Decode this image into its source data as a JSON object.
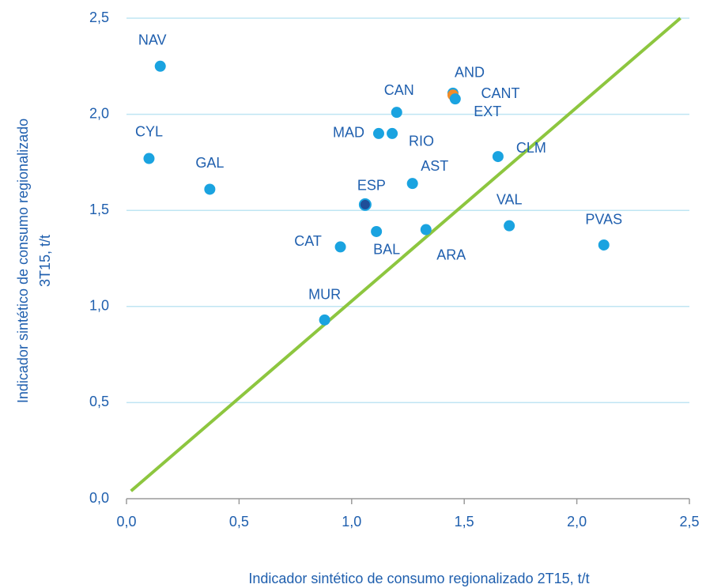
{
  "chart_data": {
    "type": "scatter",
    "x_label": "Indicador  sintético de consumo regionalizado  2T15,  t/t",
    "y_label": [
      "Indicador  sintético de consumo regionalizado",
      "3T15,  t/t"
    ],
    "labels": [
      "NAV",
      "CYL",
      "GAL",
      "MUR",
      "CAT",
      "BAL",
      "ESP",
      "MAD",
      "RIO",
      "CAN",
      "AST",
      "ARA",
      "AND",
      "CANT",
      "EXT",
      "CLM",
      "VAL",
      "PVAS"
    ],
    "x": [
      0.15,
      0.1,
      0.37,
      0.88,
      0.95,
      1.11,
      1.06,
      1.12,
      1.18,
      1.2,
      1.27,
      1.33,
      1.45,
      1.45,
      1.46,
      1.65,
      1.7,
      2.12
    ],
    "y": [
      2.25,
      1.77,
      1.61,
      0.93,
      1.31,
      1.39,
      1.53,
      1.9,
      1.9,
      2.01,
      1.64,
      1.4,
      2.11,
      2.1,
      2.08,
      1.78,
      1.42,
      1.32
    ],
    "colors": [
      "#1aa3e0",
      "#1aa3e0",
      "#1aa3e0",
      "#1aa3e0",
      "#1aa3e0",
      "#1aa3e0",
      "#1f4e99",
      "#1aa3e0",
      "#1aa3e0",
      "#1aa3e0",
      "#1aa3e0",
      "#1aa3e0",
      "#1aa3e0",
      "#f28c28",
      "#1aa3e0",
      "#1aa3e0",
      "#1aa3e0",
      "#1aa3e0"
    ],
    "diagonal": {
      "x": [
        0.02,
        2.46
      ],
      "y": [
        0.04,
        2.5
      ],
      "color": "#8dc63f"
    },
    "xlim": [
      0,
      2.5
    ],
    "ylim": [
      0,
      2.5
    ],
    "xticks": [
      {
        "value": 0,
        "label": "0,0"
      },
      {
        "value": 0.5,
        "label": "0,5"
      },
      {
        "value": 1,
        "label": "1,0"
      },
      {
        "value": 1.5,
        "label": "1,5"
      },
      {
        "value": 2,
        "label": "2,0"
      },
      {
        "value": 2.5,
        "label": "2,5"
      }
    ],
    "yticks": [
      {
        "value": 0,
        "label": "0,0"
      },
      {
        "value": 0.5,
        "label": "0,5"
      },
      {
        "value": 1,
        "label": "1,0"
      },
      {
        "value": 1.5,
        "label": "1,5"
      },
      {
        "value": 2,
        "label": "2,0"
      },
      {
        "value": 2.5,
        "label": "2,5"
      }
    ],
    "grid": true
  }
}
